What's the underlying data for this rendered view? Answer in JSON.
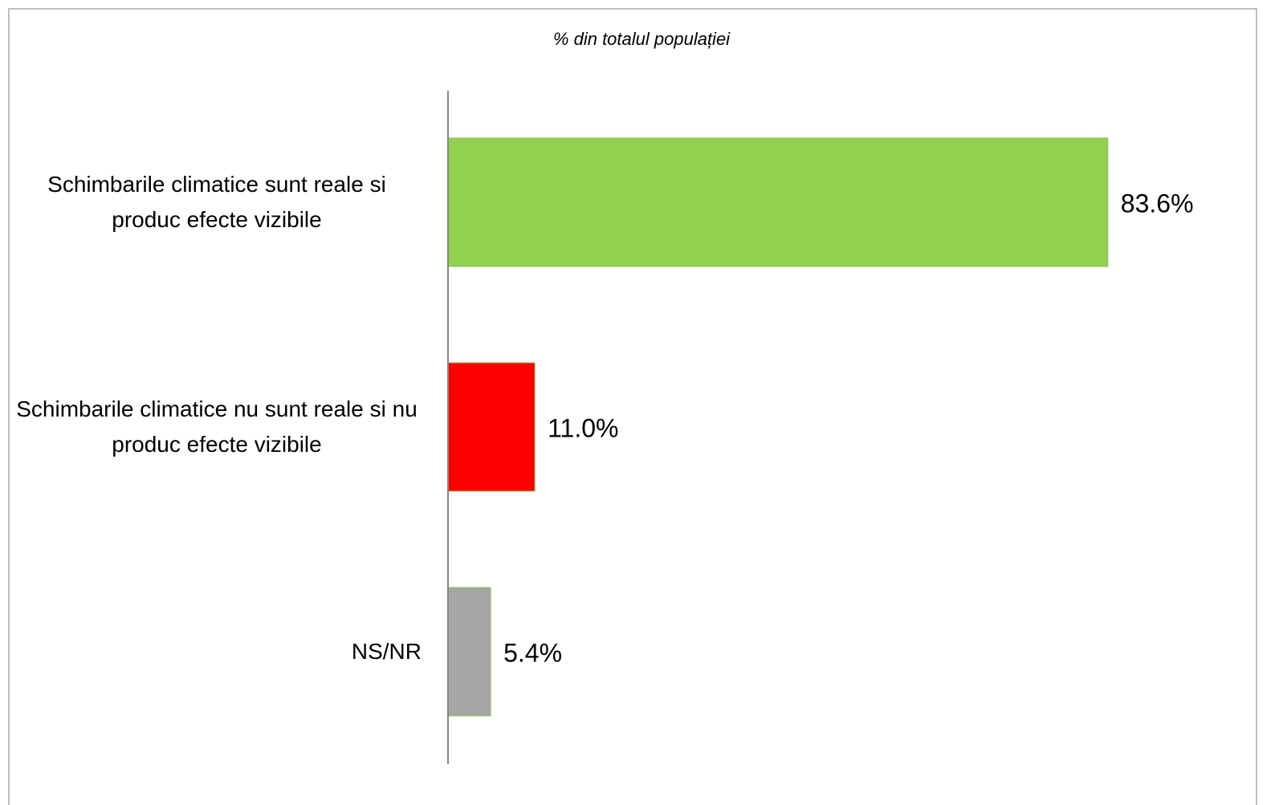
{
  "chart_data": {
    "type": "hbar",
    "title": "% din totalul populației",
    "categories": [
      "Schimbarile climatice sunt reale si produc efecte vizibile",
      "Schimbarile climatice nu sunt reale si nu produc efecte vizibile",
      "NS/NR"
    ],
    "values": [
      83.6,
      11.0,
      5.4
    ],
    "value_labels": [
      "83.6%",
      "11.0%",
      "5.4%"
    ],
    "colors": [
      "#92d050",
      "#ff0000",
      "#a6a6a6"
    ],
    "xlim": [
      0,
      100
    ]
  }
}
